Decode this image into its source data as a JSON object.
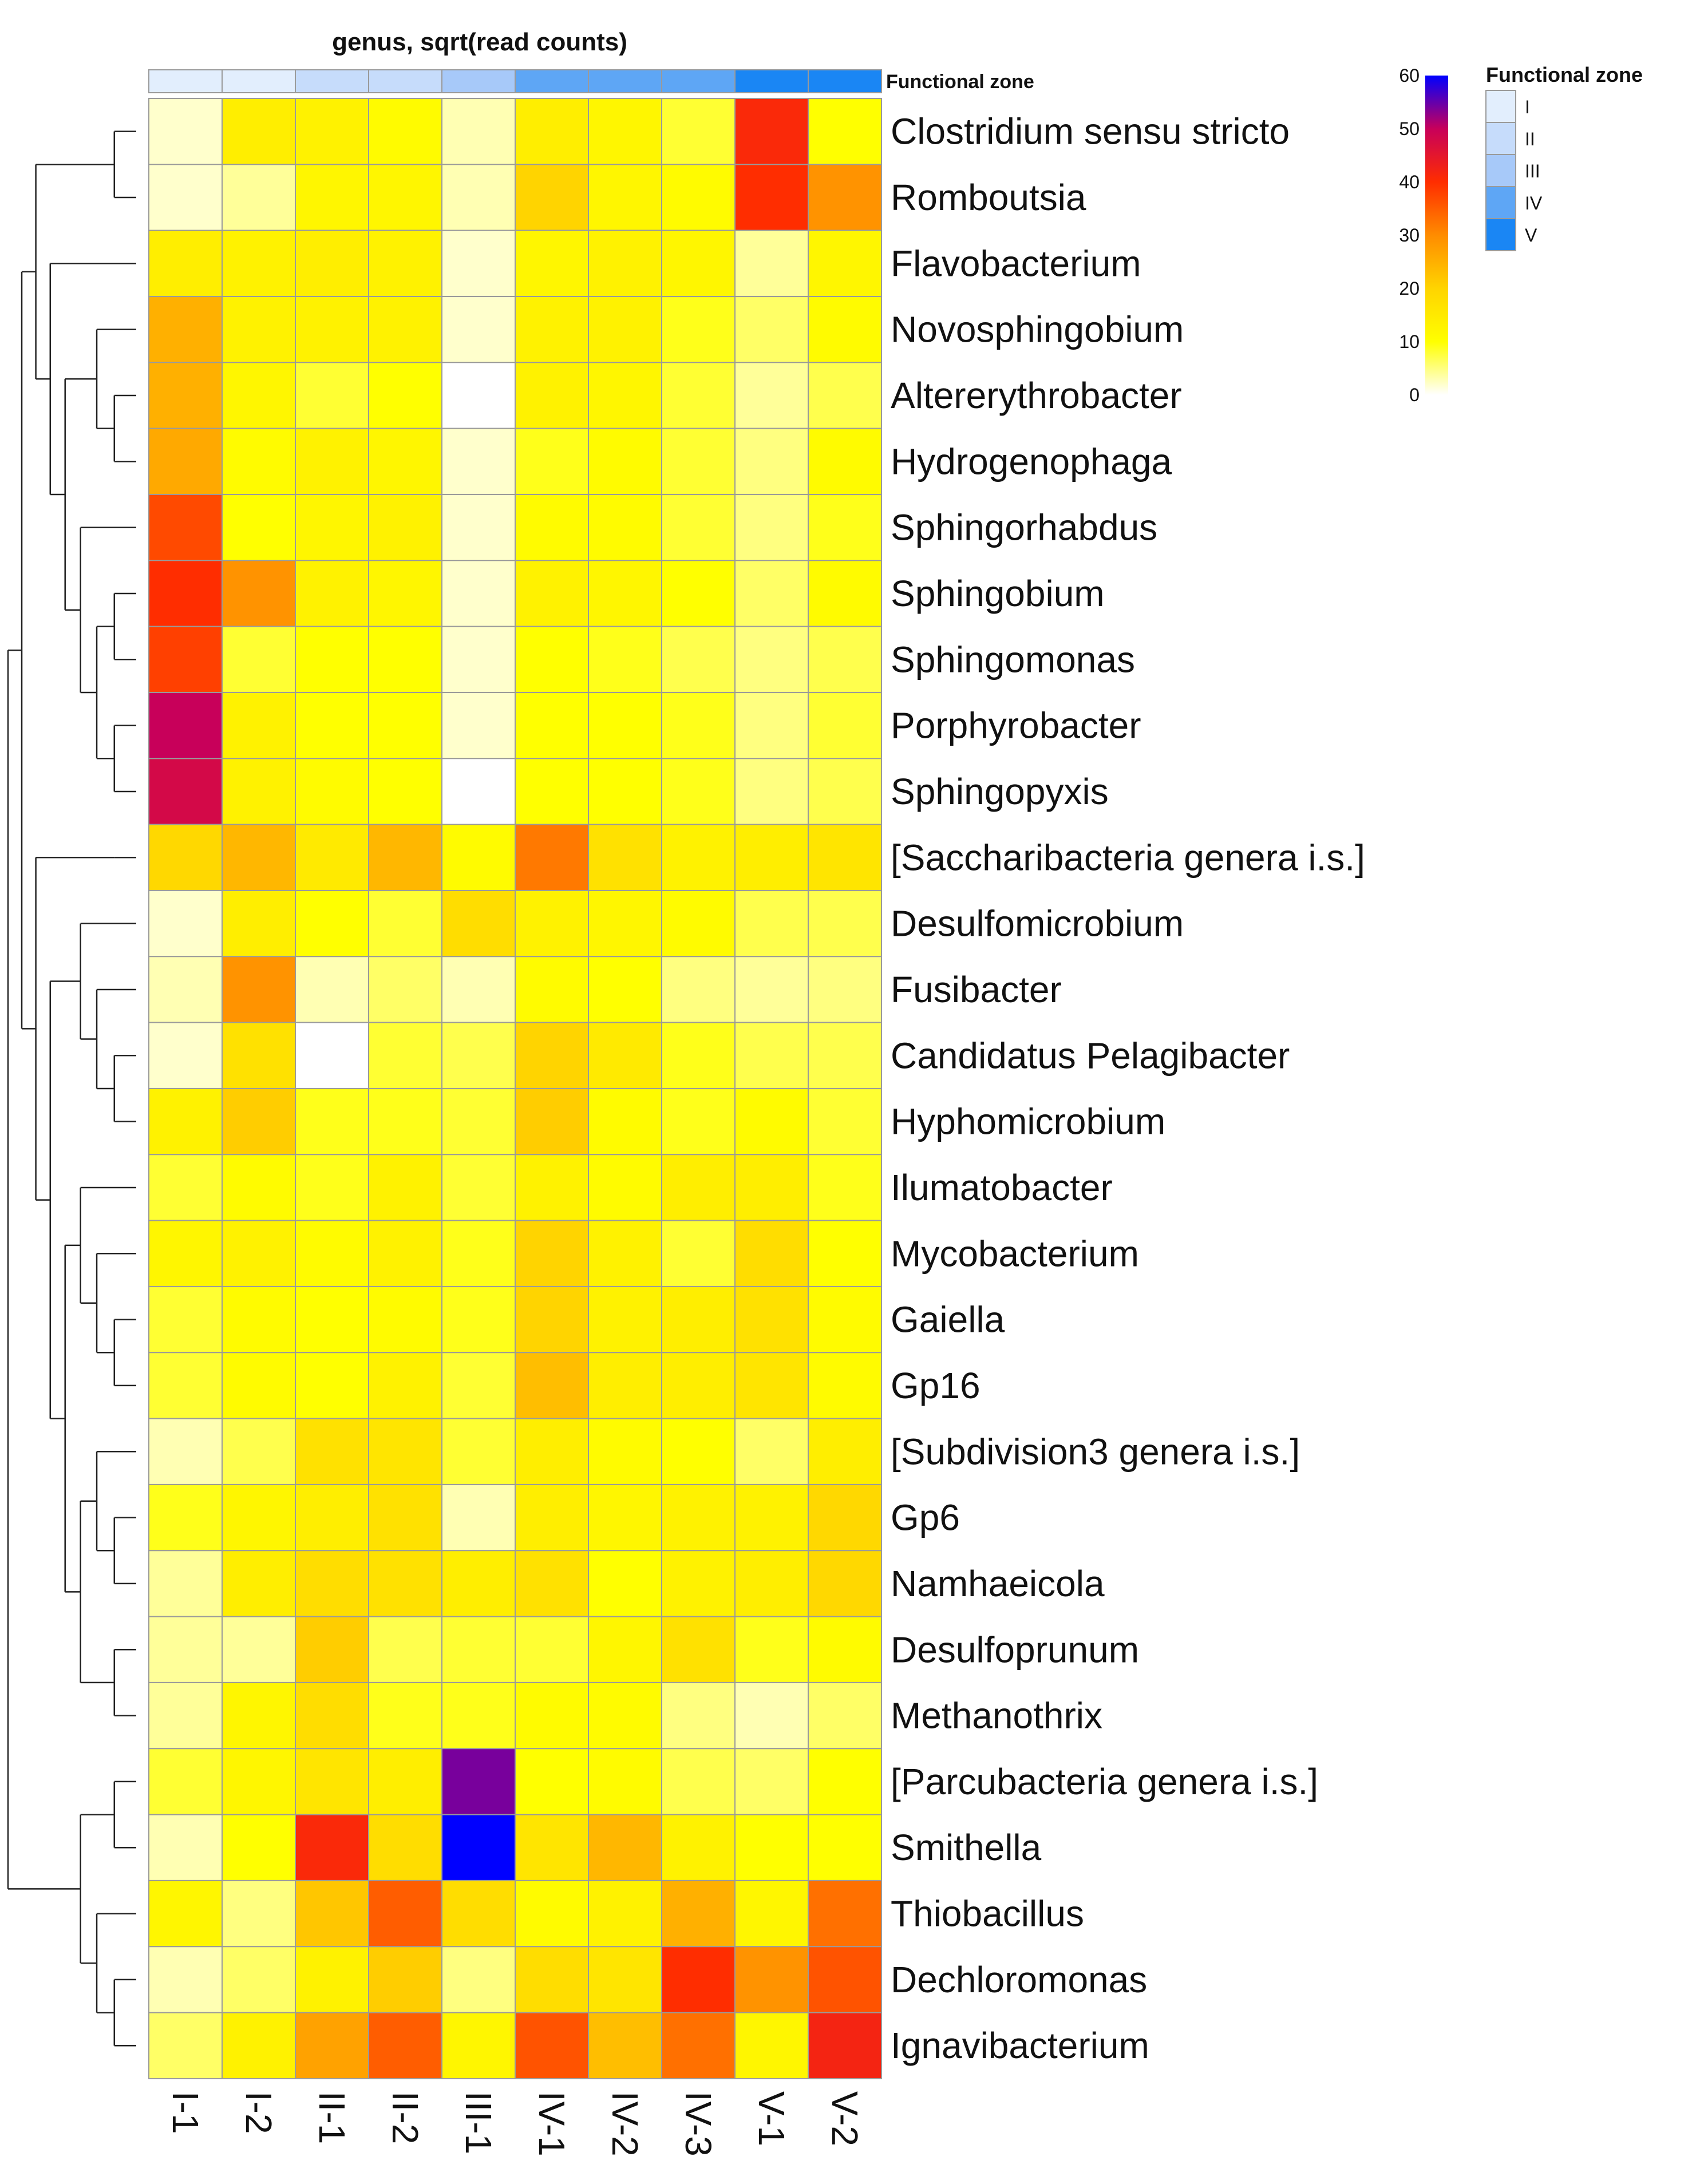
{
  "chart_data": {
    "type": "heatmap",
    "title": "genus, sqrt(read counts)",
    "columns": [
      "I-1",
      "I-2",
      "II-1",
      "II-2",
      "III-1",
      "IV-1",
      "IV-2",
      "IV-3",
      "V-1",
      "V-2"
    ],
    "column_annotation": {
      "title": "Functional zone",
      "values": [
        "I",
        "I",
        "II",
        "II",
        "III",
        "IV",
        "IV",
        "IV",
        "V",
        "V"
      ]
    },
    "rows": [
      "Clostridium sensu stricto",
      "Romboutsia",
      "Flavobacterium",
      "Novosphingobium",
      "Altererythrobacter",
      "Hydrogenophaga",
      "Sphingorhabdus",
      "Sphingobium",
      "Sphingomonas",
      "Porphyrobacter",
      "Sphingopyxis",
      "[Saccharibacteria genera  i.s.]",
      "Desulfomicrobium",
      "Fusibacter",
      "Candidatus Pelagibacter",
      "Hyphomicrobium",
      "Ilumatobacter",
      "Mycobacterium",
      "Gaiella",
      "Gp16",
      "[Subdivision3 genera  i.s.]",
      "Gp6",
      "Namhaeicola",
      "Desulfoprunum",
      "Methanothrix",
      "[Parcubacteria genera  i.s.]",
      "Smithella",
      "Thiobacillus",
      "Dechloromonas",
      "Ignavibacterium"
    ],
    "values": [
      [
        2,
        14,
        13,
        11,
        3,
        14,
        12,
        8,
        41,
        10
      ],
      [
        2,
        4,
        12,
        12,
        3,
        20,
        12,
        11,
        40,
        29
      ],
      [
        14,
        13,
        14,
        13,
        2,
        12,
        13,
        12,
        4,
        12
      ],
      [
        25,
        13,
        13,
        13,
        2,
        13,
        13,
        9,
        6,
        11
      ],
      [
        25,
        12,
        8,
        10,
        0,
        13,
        12,
        8,
        4,
        7
      ],
      [
        26,
        11,
        13,
        12,
        2,
        9,
        11,
        8,
        5,
        11
      ],
      [
        37,
        10,
        12,
        13,
        2,
        11,
        11,
        8,
        5,
        9
      ],
      [
        40,
        29,
        13,
        12,
        2,
        13,
        12,
        10,
        6,
        11
      ],
      [
        38,
        8,
        10,
        10,
        2,
        10,
        9,
        7,
        5,
        7
      ],
      [
        50,
        13,
        10,
        10,
        2,
        10,
        10,
        9,
        5,
        8
      ],
      [
        48,
        13,
        11,
        10,
        0,
        10,
        10,
        9,
        5,
        7
      ],
      [
        19,
        24,
        15,
        24,
        11,
        32,
        17,
        13,
        14,
        16
      ],
      [
        2,
        14,
        10,
        8,
        18,
        13,
        12,
        11,
        7,
        7
      ],
      [
        3,
        29,
        3,
        6,
        3,
        11,
        10,
        5,
        4,
        5
      ],
      [
        2,
        17,
        0,
        8,
        7,
        20,
        15,
        9,
        7,
        7
      ],
      [
        13,
        21,
        9,
        9,
        8,
        21,
        11,
        9,
        11,
        8
      ],
      [
        8,
        11,
        9,
        13,
        8,
        13,
        11,
        14,
        14,
        9
      ],
      [
        12,
        13,
        11,
        13,
        9,
        20,
        13,
        8,
        18,
        10
      ],
      [
        8,
        11,
        10,
        11,
        9,
        20,
        13,
        14,
        17,
        11
      ],
      [
        8,
        11,
        10,
        13,
        8,
        23,
        14,
        14,
        16,
        11
      ],
      [
        3,
        7,
        17,
        16,
        8,
        14,
        11,
        10,
        6,
        14
      ],
      [
        9,
        12,
        14,
        17,
        3,
        14,
        12,
        13,
        13,
        19
      ],
      [
        4,
        14,
        18,
        17,
        14,
        17,
        10,
        13,
        14,
        19
      ],
      [
        4,
        4,
        21,
        7,
        8,
        8,
        12,
        17,
        9,
        11
      ],
      [
        4,
        12,
        18,
        9,
        9,
        11,
        11,
        5,
        3,
        6
      ],
      [
        8,
        12,
        16,
        14,
        54,
        10,
        11,
        7,
        6,
        10
      ],
      [
        3,
        10,
        41,
        18,
        60,
        16,
        24,
        13,
        10,
        10
      ],
      [
        12,
        5,
        22,
        35,
        18,
        11,
        13,
        25,
        12,
        33
      ],
      [
        3,
        6,
        13,
        21,
        5,
        18,
        16,
        40,
        29,
        36
      ],
      [
        6,
        13,
        27,
        35,
        12,
        36,
        23,
        33,
        12,
        42
      ]
    ],
    "color_scale": {
      "min": 0,
      "max": 60,
      "ticks": [
        0,
        10,
        20,
        30,
        40,
        50,
        60
      ],
      "stops": [
        {
          "value": 0,
          "color": "#ffffff"
        },
        {
          "value": 10,
          "color": "#ffff00"
        },
        {
          "value": 20,
          "color": "#ffd400"
        },
        {
          "value": 30,
          "color": "#ff8c00"
        },
        {
          "value": 40,
          "color": "#ff2d00"
        },
        {
          "value": 50,
          "color": "#c8005a"
        },
        {
          "value": 60,
          "color": "#0000ff"
        }
      ]
    },
    "zone_colors": {
      "I": "#e2eefd",
      "II": "#c6dcfb",
      "III": "#a7c9f9",
      "IV": "#5ea6f5",
      "V": "#1a86f4"
    },
    "row_dendrogram": "[[[[Clostridium sensu stricto, Romboutsia], [Flavobacterium, [[Novosphingobium, [Altererythrobacter, Hydrogenophaga]], [Sphingorhabdus, [[Sphingobium, Sphingomonas], [Porphyrobacter, Sphingopyxis]]]]]], [[Saccharibacteria genera i.s.], [[Desulfomicrobium, [Fusibacter, [Candidatus Pelagibacter, Hyphomicrobium]]], [[Ilumatobacter, [Mycobacterium, [Gaiella, Gp16]]], [[Subdivision3 genera i.s., [Gp6, Namhaeicola]], [Desulfoprunum, Methanothrix]]]]]], [[Parcubacteria genera i.s., Smithella], [Thiobacillus, [Dechloromonas, Ignavibacterium]]]]"
  }
}
